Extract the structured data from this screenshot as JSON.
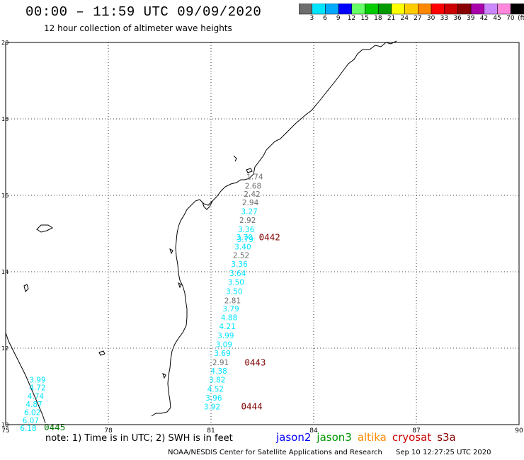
{
  "header": {
    "title": "00:00 – 11:59 UTC 09/09/2020",
    "subtitle": "12 hour collection of altimeter wave heights"
  },
  "colorbar": {
    "unit": "(ft)",
    "bins": [
      {
        "label": "3",
        "color": "#6e6e6e"
      },
      {
        "label": "6",
        "color": "#00e5ff"
      },
      {
        "label": "9",
        "color": "#00aaff"
      },
      {
        "label": "12",
        "color": "#0000ff"
      },
      {
        "label": "15",
        "color": "#66ff66"
      },
      {
        "label": "18",
        "color": "#00cc00"
      },
      {
        "label": "21",
        "color": "#009900"
      },
      {
        "label": "24",
        "color": "#ffff00"
      },
      {
        "label": "27",
        "color": "#ffcc00"
      },
      {
        "label": "30",
        "color": "#ff8800"
      },
      {
        "label": "33",
        "color": "#ff0000"
      },
      {
        "label": "36",
        "color": "#cc0000"
      },
      {
        "label": "39",
        "color": "#880000"
      },
      {
        "label": "42",
        "color": "#aa00aa"
      },
      {
        "label": "45",
        "color": "#cc88ff"
      },
      {
        "label": "70",
        "color": "#ff88dd"
      },
      {
        "label": "",
        "color": "#000000"
      }
    ]
  },
  "map": {
    "lat_range": [
      10,
      20
    ],
    "lon_range": [
      75,
      90
    ],
    "lat_ticks": [
      "10",
      "12",
      "14",
      "16",
      "18",
      "20"
    ],
    "lon_ticks": [
      "75",
      "78",
      "81",
      "84",
      "87",
      "90"
    ]
  },
  "observations": [
    {
      "lat": 16.42,
      "lon": 82.28,
      "value": "1.74",
      "color": "#6e6e6e"
    },
    {
      "lat": 16.18,
      "lon": 82.23,
      "value": "2.68",
      "color": "#6e6e6e"
    },
    {
      "lat": 15.96,
      "lon": 82.2,
      "value": "2.42",
      "color": "#6e6e6e"
    },
    {
      "lat": 15.74,
      "lon": 82.15,
      "value": "2.94",
      "color": "#6e6e6e"
    },
    {
      "lat": 15.51,
      "lon": 82.12,
      "value": "3.27",
      "color": "#00e5ff"
    },
    {
      "lat": 15.28,
      "lon": 82.07,
      "value": "2.92",
      "color": "#6e6e6e"
    },
    {
      "lat": 15.04,
      "lon": 82.03,
      "value": "3.36",
      "color": "#00e5ff"
    },
    {
      "lat": 14.83,
      "lon": 81.98,
      "value": "3.70",
      "color": "#00e5ff"
    },
    {
      "lat": 14.78,
      "lon": 82.0,
      "value": "3.79",
      "color": "#00e5ff"
    },
    {
      "lat": 14.58,
      "lon": 81.93,
      "value": "3.40",
      "color": "#00e5ff"
    },
    {
      "lat": 14.36,
      "lon": 81.88,
      "value": "2.52",
      "color": "#6e6e6e"
    },
    {
      "lat": 14.13,
      "lon": 81.83,
      "value": "3.36",
      "color": "#00e5ff"
    },
    {
      "lat": 13.89,
      "lon": 81.78,
      "value": "3.64",
      "color": "#00e5ff"
    },
    {
      "lat": 13.66,
      "lon": 81.73,
      "value": "3.50",
      "color": "#00e5ff"
    },
    {
      "lat": 13.42,
      "lon": 81.68,
      "value": "3.50",
      "color": "#00e5ff"
    },
    {
      "lat": 13.18,
      "lon": 81.63,
      "value": "2.81",
      "color": "#6e6e6e"
    },
    {
      "lat": 12.96,
      "lon": 81.58,
      "value": "3.79",
      "color": "#00e5ff"
    },
    {
      "lat": 12.73,
      "lon": 81.53,
      "value": "4.88",
      "color": "#00e5ff"
    },
    {
      "lat": 12.5,
      "lon": 81.48,
      "value": "4.21",
      "color": "#00e5ff"
    },
    {
      "lat": 12.26,
      "lon": 81.43,
      "value": "3.99",
      "color": "#00e5ff"
    },
    {
      "lat": 12.03,
      "lon": 81.38,
      "value": "3.09",
      "color": "#00e5ff"
    },
    {
      "lat": 11.8,
      "lon": 81.33,
      "value": "3.69",
      "color": "#00e5ff"
    },
    {
      "lat": 11.56,
      "lon": 81.28,
      "value": "2.91",
      "color": "#6e6e6e"
    },
    {
      "lat": 11.33,
      "lon": 81.23,
      "value": "4.38",
      "color": "#00e5ff"
    },
    {
      "lat": 11.1,
      "lon": 81.18,
      "value": "3.82",
      "color": "#00e5ff"
    },
    {
      "lat": 10.86,
      "lon": 81.13,
      "value": "4.52",
      "color": "#00e5ff"
    },
    {
      "lat": 10.63,
      "lon": 81.08,
      "value": "3.96",
      "color": "#00e5ff"
    },
    {
      "lat": 10.4,
      "lon": 81.03,
      "value": "3.92",
      "color": "#00e5ff"
    },
    {
      "lat": 11.1,
      "lon": 75.93,
      "value": "3.99",
      "color": "#00e5ff"
    },
    {
      "lat": 10.9,
      "lon": 75.93,
      "value": "4.72",
      "color": "#00e5ff"
    },
    {
      "lat": 10.68,
      "lon": 75.88,
      "value": "4.74",
      "color": "#00e5ff"
    },
    {
      "lat": 10.46,
      "lon": 75.83,
      "value": "4.87",
      "color": "#00e5ff"
    },
    {
      "lat": 10.25,
      "lon": 75.78,
      "value": "6.02",
      "color": "#00e5ff"
    },
    {
      "lat": 10.04,
      "lon": 75.73,
      "value": "6.07",
      "color": "#00e5ff"
    },
    {
      "lat": 9.83,
      "lon": 75.66,
      "value": "6.18",
      "color": "#00e5ff"
    }
  ],
  "passes": [
    {
      "lat": 14.82,
      "lon": 82.4,
      "label": "0442",
      "color": "#800000"
    },
    {
      "lat": 11.55,
      "lon": 81.98,
      "label": "0443",
      "color": "#800000"
    },
    {
      "lat": 10.4,
      "lon": 81.88,
      "label": "0444",
      "color": "#800000"
    },
    {
      "lat": 9.85,
      "lon": 76.12,
      "label": "0445",
      "color": "#007700"
    }
  ],
  "footer": {
    "note": "note: 1) Time is in UTC; 2) SWH is in feet",
    "legend": [
      {
        "name": "jason2",
        "color": "#0000ff"
      },
      {
        "name": "jason3",
        "color": "#009900"
      },
      {
        "name": "altika",
        "color": "#ff8800"
      },
      {
        "name": "cryosat",
        "color": "#cc0000"
      },
      {
        "name": "s3a",
        "color": "#880000"
      }
    ],
    "credit": "NOAA/NESDIS Center for Satellite Applications and Research",
    "timestamp": "Sep 10 12:27:25 UTC 2020"
  }
}
